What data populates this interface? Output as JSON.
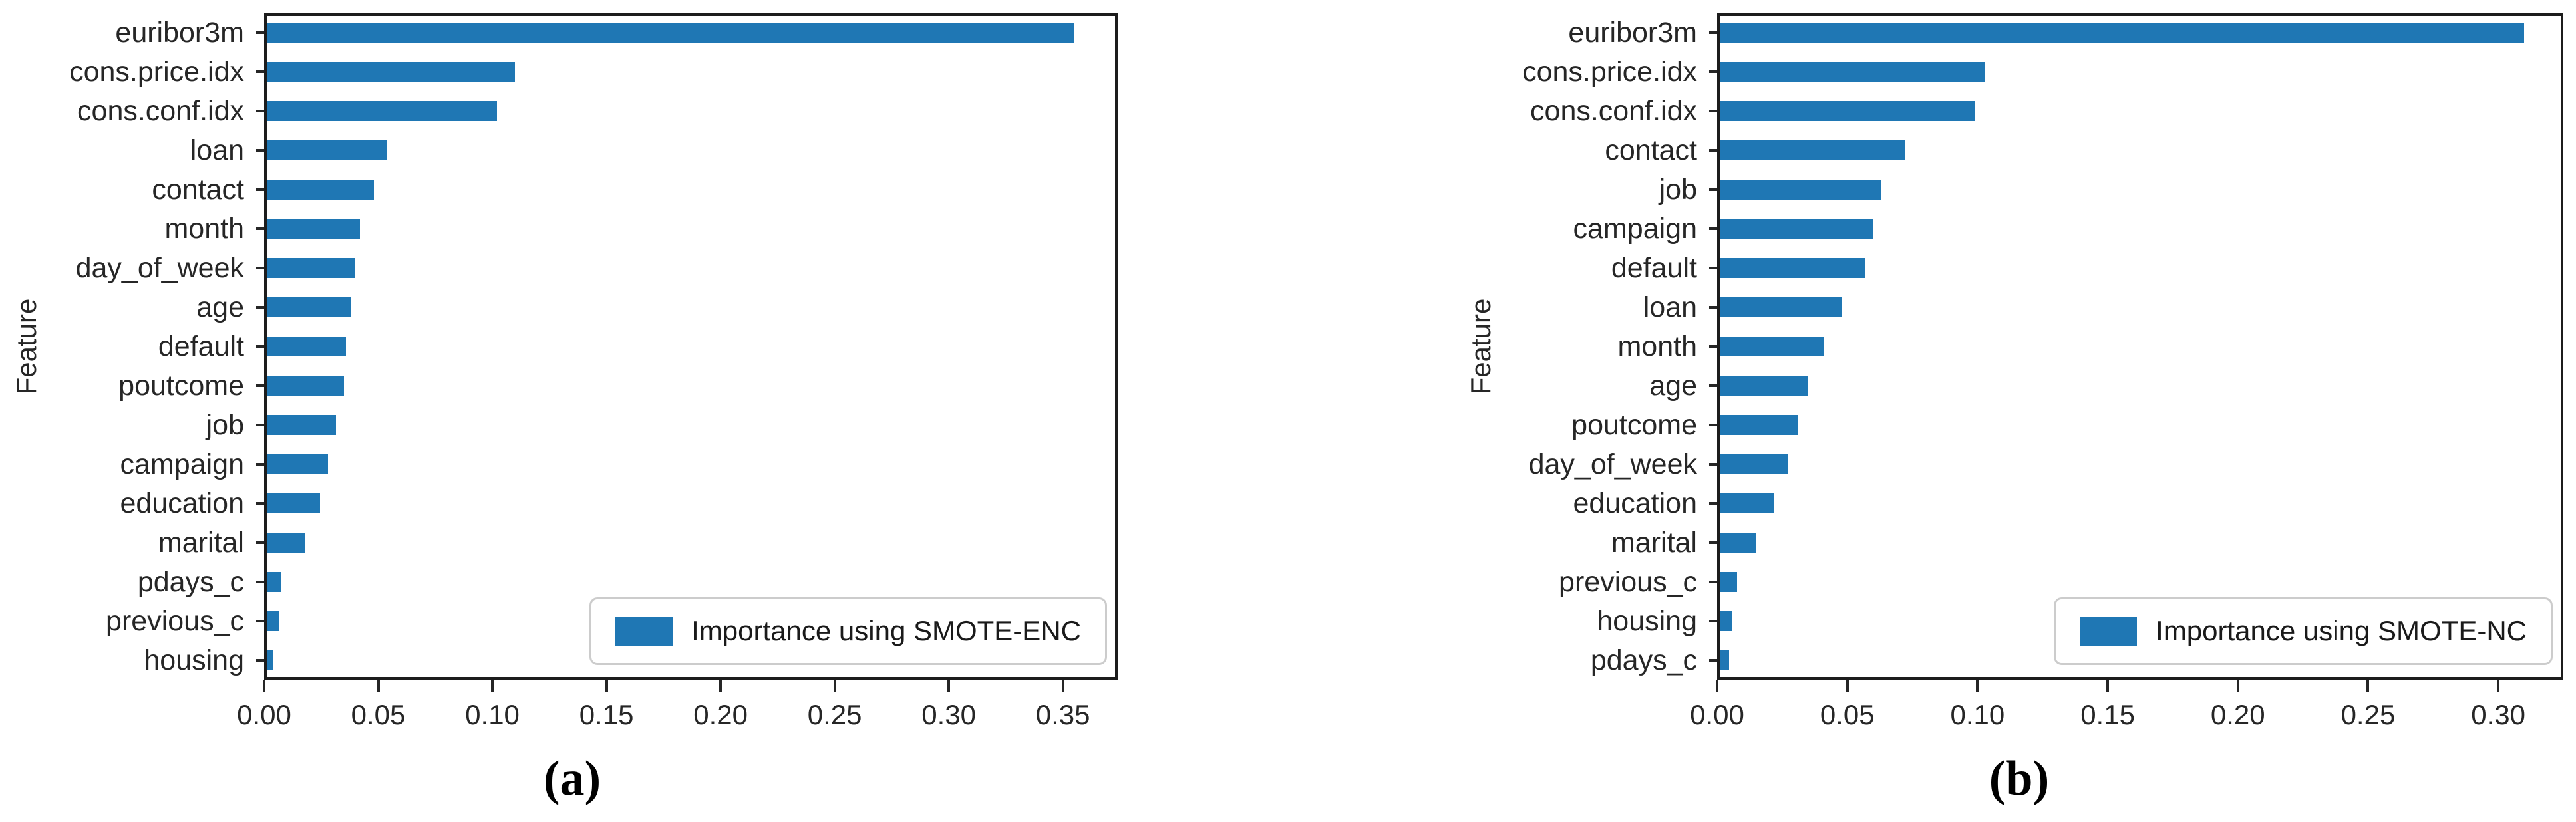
{
  "page": {
    "background": "#ffffff"
  },
  "colors": {
    "bar": "#1f77b4",
    "frame": "#1c1c1c",
    "text": "#262626",
    "legend_border": "#cccccc"
  },
  "chart_data": [
    {
      "type": "bar",
      "orientation": "horizontal",
      "caption": "(a)",
      "ylabel": "Feature",
      "xlabel": "",
      "legend": {
        "label": "Importance using SMOTE-ENC",
        "position": "lower right",
        "swatch_color": "#1f77b4"
      },
      "bar_color": "#1f77b4",
      "grid": false,
      "categories": [
        "euribor3m",
        "cons.price.idx",
        "cons.conf.idx",
        "loan",
        "contact",
        "month",
        "day_of_week",
        "age",
        "default",
        "poutcome",
        "job",
        "campaign",
        "education",
        "marital",
        "pdays_c",
        "previous_c",
        "housing"
      ],
      "values": [
        0.355,
        0.11,
        0.102,
        0.054,
        0.048,
        0.042,
        0.0395,
        0.038,
        0.036,
        0.035,
        0.0315,
        0.028,
        0.0245,
        0.018,
        0.0075,
        0.0065,
        0.004
      ],
      "xlim": [
        0,
        0.374
      ],
      "xtick_values": [
        0.0,
        0.05,
        0.1,
        0.15,
        0.2,
        0.25,
        0.3,
        0.35
      ],
      "xtick_labels": [
        "0.00",
        "0.05",
        "0.10",
        "0.15",
        "0.20",
        "0.25",
        "0.30",
        "0.35"
      ]
    },
    {
      "type": "bar",
      "orientation": "horizontal",
      "caption": "(b)",
      "ylabel": "Feature",
      "xlabel": "",
      "legend": {
        "label": "Importance using SMOTE-NC",
        "position": "lower right",
        "swatch_color": "#1f77b4"
      },
      "bar_color": "#1f77b4",
      "grid": false,
      "categories": [
        "euribor3m",
        "cons.price.idx",
        "cons.conf.idx",
        "contact",
        "job",
        "campaign",
        "default",
        "loan",
        "month",
        "age",
        "poutcome",
        "day_of_week",
        "education",
        "marital",
        "previous_c",
        "housing",
        "pdays_c"
      ],
      "values": [
        0.31,
        0.103,
        0.099,
        0.072,
        0.063,
        0.06,
        0.057,
        0.048,
        0.041,
        0.035,
        0.031,
        0.027,
        0.022,
        0.015,
        0.0076,
        0.0056,
        0.0046
      ],
      "xlim": [
        0,
        0.325
      ],
      "xtick_values": [
        0.0,
        0.05,
        0.1,
        0.15,
        0.2,
        0.25,
        0.3
      ],
      "xtick_labels": [
        "0.00",
        "0.05",
        "0.10",
        "0.15",
        "0.20",
        "0.25",
        "0.30"
      ]
    }
  ]
}
